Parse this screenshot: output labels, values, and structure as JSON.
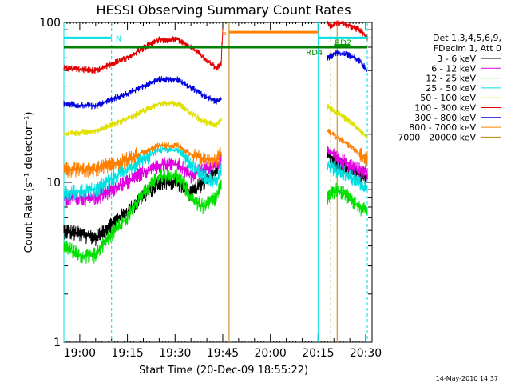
{
  "chart_data": {
    "type": "line",
    "title": "HESSI Observing Summary Count Rates",
    "xlabel": "Start Time (20-Dec-09 18:55:22)",
    "ylabel": "Count Rate (s⁻¹ detector⁻¹)",
    "yscale": "log",
    "ylim": [
      1,
      100
    ],
    "xlim_minutes_after_1855": [
      0,
      97
    ],
    "x_ticks": [
      "19:00",
      "19:15",
      "19:30",
      "19:45",
      "20:00",
      "20:15",
      "20:30"
    ],
    "y_ticks": [
      "1",
      "10",
      "100"
    ],
    "legend_header": [
      "Det 1,3,4,5,6,9,",
      "FDecim 1, Att 0"
    ],
    "footer_timestamp": "14-May-2010 14:37",
    "grid": false,
    "legend_position": "right",
    "series": [
      {
        "name": "3 - 6 keV",
        "color": "#000000",
        "segments": [
          {
            "x": [
              0,
              10,
              20,
              30,
              36,
              40,
              44,
              48,
              49.5
            ],
            "y": [
              5,
              4.5,
              6.5,
              10,
              10,
              8.5,
              10,
              12,
              14
            ]
          },
          {
            "x": [
              83,
              86,
              90,
              93,
              95.5
            ],
            "y": [
              15,
              13,
              12,
              11,
              10.5
            ]
          }
        ]
      },
      {
        "name": "6 - 12 keV",
        "color": "#e000e0",
        "segments": [
          {
            "x": [
              0,
              10,
              20,
              30,
              36,
              40,
              44,
              48,
              49.5
            ],
            "y": [
              8,
              8,
              10,
              13,
              13,
              11,
              12,
              13,
              14
            ]
          },
          {
            "x": [
              83,
              86,
              90,
              93,
              95.5
            ],
            "y": [
              16,
              14,
              13,
              12,
              11.5
            ]
          }
        ]
      },
      {
        "name": "12 - 25 keV",
        "color": "#00e000",
        "segments": [
          {
            "x": [
              0,
              5,
              10,
              20,
              30,
              36,
              40,
              44,
              48,
              49.5
            ],
            "y": [
              4,
              3.5,
              3.5,
              6,
              11,
              11,
              8,
              7,
              8,
              10
            ]
          },
          {
            "x": [
              83,
              86,
              90,
              93,
              95.5
            ],
            "y": [
              8,
              9,
              8,
              7,
              6.5
            ]
          }
        ]
      },
      {
        "name": "25 - 50 keV",
        "color": "#00e0e0",
        "segments": [
          {
            "x": [
              0,
              10,
              20,
              30,
              36,
              40,
              44,
              48,
              49.5
            ],
            "y": [
              8.5,
              9,
              12,
              16,
              16,
              13,
              11,
              10,
              12
            ]
          },
          {
            "x": [
              83,
              86,
              90,
              93,
              95.5
            ],
            "y": [
              13,
              12,
              11,
              10,
              9
            ]
          }
        ]
      },
      {
        "name": "50 - 100 keV",
        "color": "#e0e000",
        "segments": [
          {
            "x": [
              0,
              10,
              20,
              30,
              36,
              40,
              44,
              48,
              49.5
            ],
            "y": [
              20,
              21,
              25,
              31,
              31,
              27,
              24,
              23,
              25
            ]
          },
          {
            "x": [
              83,
              86,
              90,
              93,
              95.5
            ],
            "y": [
              30,
              27,
              24,
              21,
              19
            ]
          }
        ]
      },
      {
        "name": "100 - 300 keV",
        "color": "#e00000",
        "segments": [
          {
            "x": [
              0,
              10,
              20,
              30,
              36,
              40,
              44,
              48,
              49.5,
              50
            ],
            "y": [
              52,
              50,
              60,
              78,
              78,
              70,
              60,
              52,
              55,
              90
            ]
          },
          {
            "x": [
              83,
              84,
              86,
              90,
              93,
              95.5
            ],
            "y": [
              100,
              95,
              100,
              95,
              90,
              80
            ]
          }
        ]
      },
      {
        "name": "300 - 800 keV",
        "color": "#0000e0",
        "segments": [
          {
            "x": [
              0,
              10,
              20,
              30,
              36,
              40,
              44,
              48,
              49.5
            ],
            "y": [
              31,
              30,
              36,
              44,
              44,
              39,
              35,
              32,
              33
            ]
          },
          {
            "x": [
              83,
              86,
              90,
              93,
              95.5
            ],
            "y": [
              60,
              65,
              62,
              58,
              50
            ]
          }
        ]
      },
      {
        "name": "800 - 7000 keV",
        "color": "#ff8000",
        "segments": [
          {
            "x": [
              0,
              10,
              20,
              30,
              36,
              40,
              44,
              48,
              49.5
            ],
            "y": [
              12,
              12,
              14,
              17,
              17,
              15,
              14,
              14,
              15
            ]
          },
          {
            "x": [
              83,
              86,
              90,
              93,
              95.5
            ],
            "y": [
              21,
              19,
              17,
              15,
              14
            ]
          }
        ]
      },
      {
        "name": "7000 - 20000 keV",
        "color": "#c08000",
        "segments": []
      }
    ],
    "attenuator_bars": [
      {
        "label": "N",
        "color": "#00e0e0",
        "x": [
          0,
          15
        ],
        "y": 80
      },
      {
        "label": "S",
        "color": "#ff8000",
        "x": [
          52,
          80
        ],
        "y": 87
      },
      {
        "label": "",
        "color": "#00e0e0",
        "x": [
          80,
          95.5
        ],
        "y": 80
      },
      {
        "label": "RD4",
        "color": "#008000",
        "x": [
          0,
          95.5
        ],
        "y": 70
      },
      {
        "label": "RD2",
        "color": "#00a000",
        "x": [
          85,
          90
        ],
        "y": 72
      }
    ],
    "vertical_markers": [
      {
        "x": 0,
        "color": "#00e0e0",
        "style": "solid"
      },
      {
        "x": 15,
        "color": "#00e0e0",
        "style": "dashed"
      },
      {
        "x": 52,
        "color": "#c08000",
        "style": "solid"
      },
      {
        "x": 80,
        "color": "#00e0e0",
        "style": "solid"
      },
      {
        "x": 84,
        "color": "#c08000",
        "style": "dashed"
      },
      {
        "x": 86,
        "color": "#c08000",
        "style": "solid"
      },
      {
        "x": 95.5,
        "color": "#00e0e0",
        "style": "dashed"
      }
    ]
  }
}
